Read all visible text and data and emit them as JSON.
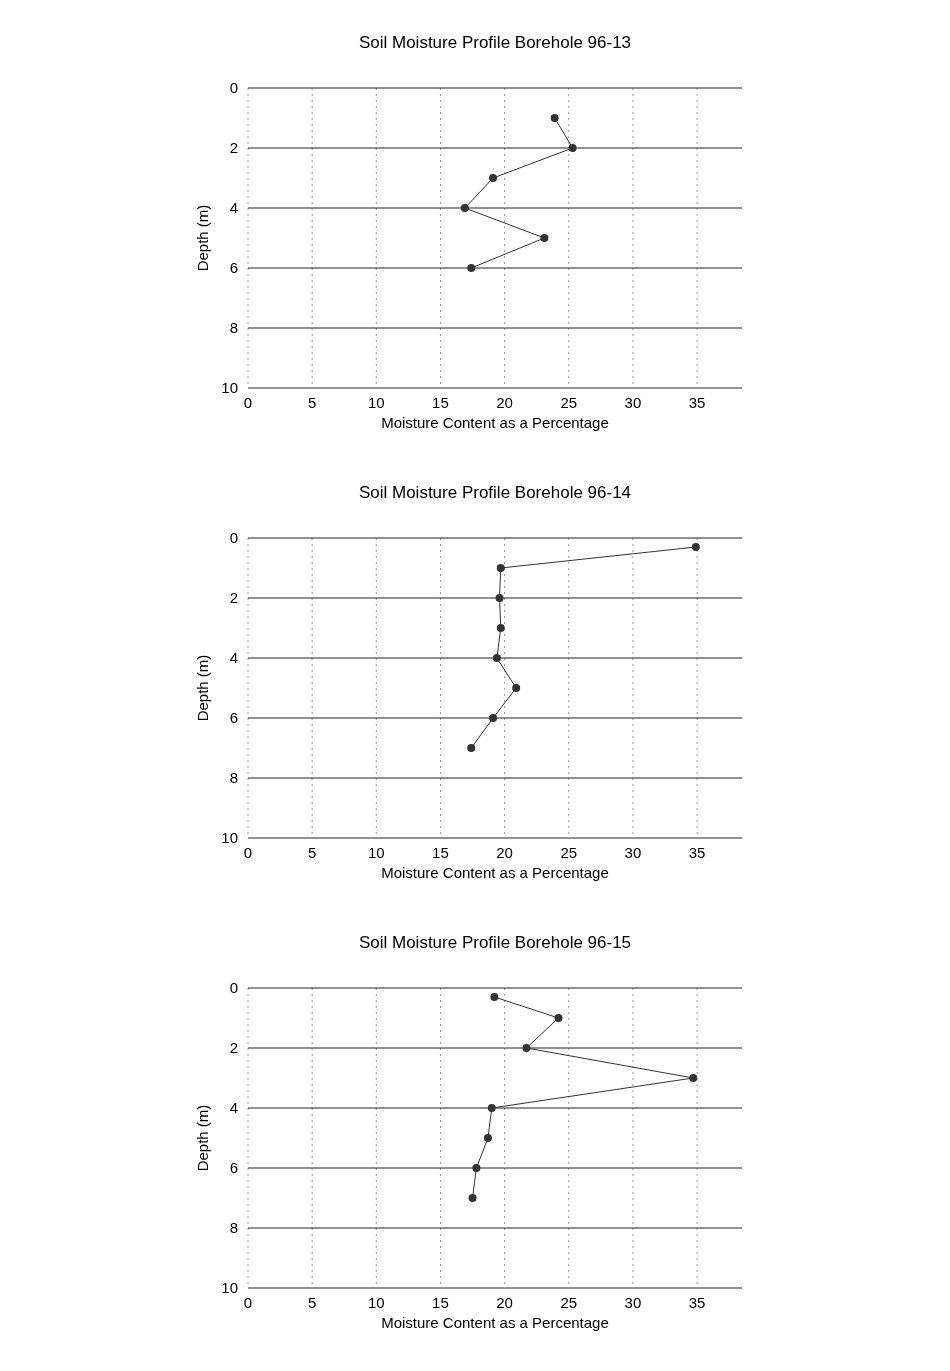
{
  "chart_data": [
    {
      "type": "line",
      "title": "Soil Moisture Profile Borehole 96-13",
      "xlabel": "Moisture Content as a Percentage",
      "ylabel": "Depth (m)",
      "xlim": [
        0,
        38.5
      ],
      "xticks": [
        0,
        5,
        10,
        15,
        20,
        25,
        30,
        35
      ],
      "ylim": [
        10,
        0
      ],
      "yticks": [
        0,
        2,
        4,
        6,
        8,
        10
      ],
      "grid": true,
      "marker": "circle",
      "line_style": "solid",
      "legend": false,
      "series": [
        {
          "color": "#333333",
          "x": [
            23.9,
            25.3,
            19.1,
            16.9,
            23.1,
            17.4
          ],
          "values": [
            1,
            2,
            3,
            4,
            5,
            6
          ]
        }
      ]
    },
    {
      "type": "line",
      "title": "Soil Moisture Profile Borehole 96-14",
      "xlabel": "Moisture Content as a Percentage",
      "ylabel": "Depth (m)",
      "xlim": [
        0,
        38.5
      ],
      "xticks": [
        0,
        5,
        10,
        15,
        20,
        25,
        30,
        35
      ],
      "ylim": [
        10,
        0
      ],
      "yticks": [
        0,
        2,
        4,
        6,
        8,
        10
      ],
      "grid": true,
      "marker": "circle",
      "line_style": "solid",
      "legend": false,
      "series": [
        {
          "color": "#333333",
          "x": [
            34.9,
            19.7,
            19.6,
            19.7,
            19.4,
            20.9,
            19.1,
            17.4
          ],
          "values": [
            0.3,
            1,
            2,
            3,
            4,
            5,
            6,
            7
          ]
        }
      ]
    },
    {
      "type": "line",
      "title": "Soil Moisture Profile Borehole 96-15",
      "xlabel": "Moisture Content as a Percentage",
      "ylabel": "Depth (m)",
      "xlim": [
        0,
        38.5
      ],
      "xticks": [
        0,
        5,
        10,
        15,
        20,
        25,
        30,
        35
      ],
      "ylim": [
        10,
        0
      ],
      "yticks": [
        0,
        2,
        4,
        6,
        8,
        10
      ],
      "grid": true,
      "marker": "circle",
      "line_style": "solid",
      "legend": false,
      "series": [
        {
          "color": "#333333",
          "x": [
            19.2,
            24.2,
            21.7,
            34.7,
            19.0,
            18.7,
            17.8,
            17.5
          ],
          "values": [
            0.3,
            1,
            2,
            3,
            4,
            5,
            6,
            7
          ]
        }
      ]
    }
  ]
}
